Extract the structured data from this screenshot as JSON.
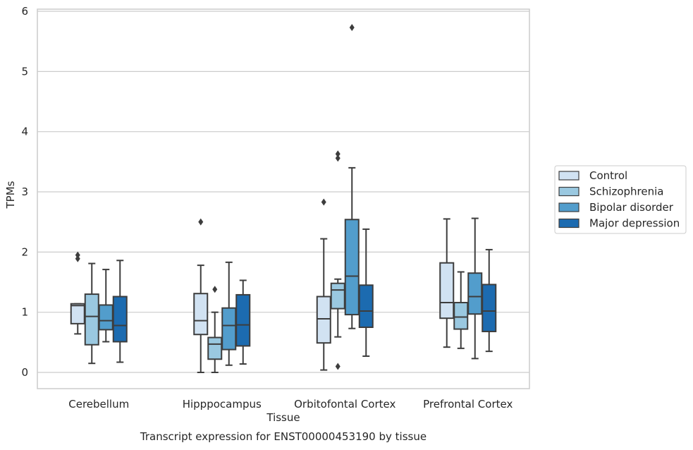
{
  "chart_data": {
    "type": "boxplot",
    "xlabel": "Tissue",
    "ylabel": "TPMs",
    "caption": "Transcript expression for ENST00000453190 by tissue",
    "ylim": [
      -0.27,
      6.05
    ],
    "yticks": [
      "0",
      "1",
      "2",
      "3",
      "4",
      "5",
      "6"
    ],
    "grid": "horizontal",
    "legend_position": "right",
    "categories": [
      "Cerebellum",
      "Hipppocampus",
      "Orbitofontal Cortex",
      "Prefrontal Cortex"
    ],
    "series": [
      {
        "name": "Control",
        "color": "#d1e2f2",
        "boxes": [
          {
            "whislo": 0.64,
            "q1": 0.81,
            "med": 1.11,
            "q3": 1.14,
            "whishi": 1.14,
            "fliers": [
              1.89,
              1.95
            ]
          },
          {
            "whislo": 0.0,
            "q1": 0.63,
            "med": 0.86,
            "q3": 1.31,
            "whishi": 1.78,
            "fliers": [
              2.5
            ]
          },
          {
            "whislo": 0.04,
            "q1": 0.49,
            "med": 0.89,
            "q3": 1.26,
            "whishi": 2.22,
            "fliers": [
              2.83
            ]
          },
          {
            "whislo": 0.42,
            "q1": 0.9,
            "med": 1.16,
            "q3": 1.82,
            "whishi": 2.55,
            "fliers": []
          }
        ]
      },
      {
        "name": "Schizophrenia",
        "color": "#9ac8e0",
        "boxes": [
          {
            "whislo": 0.15,
            "q1": 0.46,
            "med": 0.93,
            "q3": 1.3,
            "whishi": 1.81,
            "fliers": []
          },
          {
            "whislo": 0.0,
            "q1": 0.22,
            "med": 0.47,
            "q3": 0.58,
            "whishi": 1.0,
            "fliers": [
              1.38
            ]
          },
          {
            "whislo": 0.59,
            "q1": 1.06,
            "med": 1.37,
            "q3": 1.48,
            "whishi": 1.55,
            "fliers": [
              0.1,
              3.56,
              3.63
            ]
          },
          {
            "whislo": 0.4,
            "q1": 0.72,
            "med": 0.92,
            "q3": 1.16,
            "whishi": 1.67,
            "fliers": []
          }
        ]
      },
      {
        "name": "Bipolar disorder",
        "color": "#529dcc",
        "boxes": [
          {
            "whislo": 0.51,
            "q1": 0.71,
            "med": 0.86,
            "q3": 1.12,
            "whishi": 1.71,
            "fliers": []
          },
          {
            "whislo": 0.12,
            "q1": 0.38,
            "med": 0.78,
            "q3": 1.07,
            "whishi": 1.83,
            "fliers": []
          },
          {
            "whislo": 0.73,
            "q1": 0.96,
            "med": 1.6,
            "q3": 2.54,
            "whishi": 3.4,
            "fliers": [
              5.73
            ]
          },
          {
            "whislo": 0.23,
            "q1": 0.97,
            "med": 1.26,
            "q3": 1.65,
            "whishi": 2.56,
            "fliers": []
          }
        ]
      },
      {
        "name": "Major depression",
        "color": "#1c6bb0",
        "boxes": [
          {
            "whislo": 0.17,
            "q1": 0.51,
            "med": 0.78,
            "q3": 1.26,
            "whishi": 1.86,
            "fliers": []
          },
          {
            "whislo": 0.14,
            "q1": 0.44,
            "med": 0.79,
            "q3": 1.29,
            "whishi": 1.53,
            "fliers": []
          },
          {
            "whislo": 0.27,
            "q1": 0.75,
            "med": 1.02,
            "q3": 1.45,
            "whishi": 2.38,
            "fliers": []
          },
          {
            "whislo": 0.35,
            "q1": 0.68,
            "med": 1.02,
            "q3": 1.46,
            "whishi": 2.04,
            "fliers": []
          }
        ]
      }
    ]
  }
}
